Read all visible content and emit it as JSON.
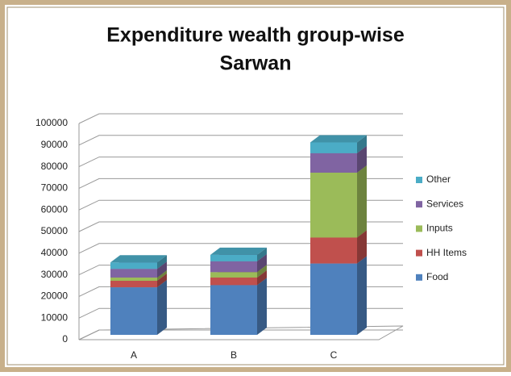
{
  "chart_data": {
    "type": "bar3d_stacked",
    "title": "Expenditure wealth group-wise",
    "subtitle": "Sarwan",
    "categories": [
      "A",
      "B",
      "C"
    ],
    "series": [
      {
        "name": "Food",
        "color": "#4f81bd",
        "values": [
          22000,
          23000,
          33000
        ]
      },
      {
        "name": "HH Items",
        "color": "#c0504d",
        "values": [
          3000,
          3500,
          12000
        ]
      },
      {
        "name": "Inputs",
        "color": "#9bbb59",
        "values": [
          1500,
          2500,
          30000
        ]
      },
      {
        "name": "Services",
        "color": "#8064a2",
        "values": [
          4000,
          5000,
          9000
        ]
      },
      {
        "name": "Other",
        "color": "#4bacc6",
        "values": [
          3000,
          3000,
          5000
        ]
      }
    ],
    "ylim": [
      0,
      100000
    ],
    "yticks": [
      0,
      10000,
      20000,
      30000,
      40000,
      50000,
      60000,
      70000,
      80000,
      90000,
      100000
    ],
    "grid": true,
    "legend": "right"
  }
}
